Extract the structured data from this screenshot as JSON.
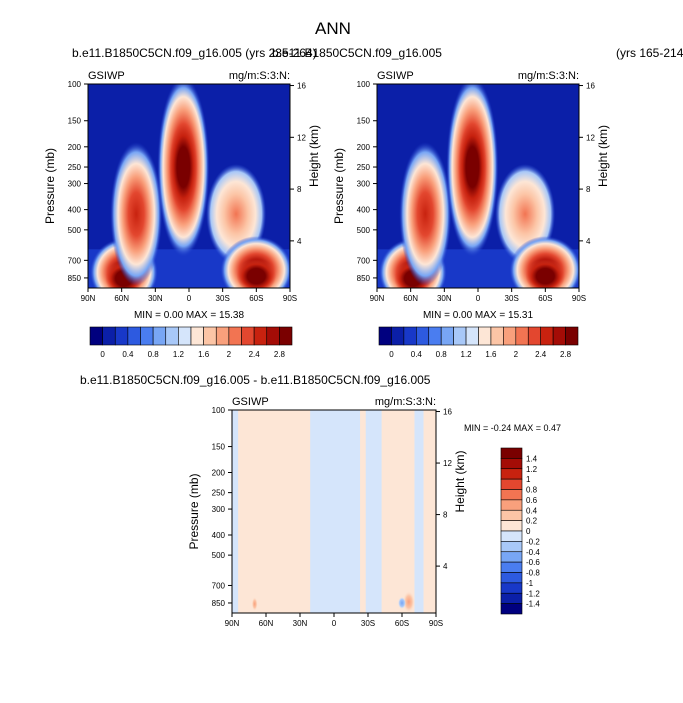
{
  "figure": {
    "title": "ANN",
    "left_header": "b.e11.B1850C5CN.f09_g16.005 (yrs 235-264)",
    "right_header": "b.e11.B1850C5CN.f09_g16.005",
    "right_header_years": "(yrs 165-214)",
    "diff_header": "b.e11.B1850C5CN.f09_g16.005 - b.e11.B1850C5CN.f09_g16.005"
  },
  "chart_data": [
    {
      "id": "panel-left",
      "type": "heatmap",
      "variable": "GSIWP",
      "units": "mg/m:S:3:N:",
      "ylabel": "Pressure (mb)",
      "y2label": "Height (km)",
      "x_ticks": [
        "90N",
        "60N",
        "30N",
        "0",
        "30S",
        "60S",
        "90S"
      ],
      "y_ticks": [
        "100",
        "150",
        "200",
        "250",
        "300",
        "400",
        "500",
        "700",
        "850"
      ],
      "y2_ticks": [
        "16",
        "12",
        "8",
        "4"
      ],
      "min_max_text": "MIN =  0.00  MAX =  15.38",
      "min": 0.0,
      "max": 15.38,
      "colorbar_labels": [
        "0",
        "0.4",
        "0.8",
        "1.2",
        "1.6",
        "2",
        "2.4",
        "2.8"
      ],
      "features": [
        {
          "lat": 58,
          "p": 800,
          "value": 3.0
        },
        {
          "lat": 47,
          "p": 420,
          "value": 2.2
        },
        {
          "lat": 5,
          "p": 250,
          "value": 3.0
        },
        {
          "lat": -42,
          "p": 420,
          "value": 1.6
        },
        {
          "lat": -60,
          "p": 780,
          "value": 3.0
        }
      ]
    },
    {
      "id": "panel-right",
      "type": "heatmap",
      "variable": "GSIWP",
      "units": "mg/m:S:3:N:",
      "ylabel": "Pressure (mb)",
      "y2label": "Height (km)",
      "x_ticks": [
        "90N",
        "60N",
        "30N",
        "0",
        "30S",
        "60S",
        "90S"
      ],
      "y_ticks": [
        "100",
        "150",
        "200",
        "250",
        "300",
        "400",
        "500",
        "700",
        "850"
      ],
      "y2_ticks": [
        "16",
        "12",
        "8",
        "4"
      ],
      "min_max_text": "MIN =  0.00  MAX =  15.31",
      "min": 0.0,
      "max": 15.31,
      "colorbar_labels": [
        "0",
        "0.4",
        "0.8",
        "1.2",
        "1.6",
        "2",
        "2.4",
        "2.8"
      ],
      "features": [
        {
          "lat": 58,
          "p": 800,
          "value": 3.0
        },
        {
          "lat": 47,
          "p": 420,
          "value": 2.2
        },
        {
          "lat": 5,
          "p": 250,
          "value": 3.0
        },
        {
          "lat": -42,
          "p": 420,
          "value": 1.6
        },
        {
          "lat": -60,
          "p": 780,
          "value": 3.0
        }
      ]
    },
    {
      "id": "panel-diff",
      "type": "heatmap",
      "variable": "GSIWP",
      "units": "mg/m:S:3:N:",
      "ylabel": "Pressure (mb)",
      "y2label": "Height (km)",
      "x_ticks": [
        "90N",
        "60N",
        "30N",
        "0",
        "30S",
        "60S",
        "90S"
      ],
      "y_ticks": [
        "100",
        "150",
        "200",
        "250",
        "300",
        "400",
        "500",
        "700",
        "850"
      ],
      "y2_ticks": [
        "16",
        "12",
        "8",
        "4"
      ],
      "min_max_text": "MIN = -0.24  MAX =  0.47",
      "min": -0.24,
      "max": 0.47,
      "colorbar_labels": [
        "1.4",
        "1.2",
        "1",
        "0.8",
        "0.6",
        "0.4",
        "0.2",
        "0",
        "-0.2",
        "-0.4",
        "-0.6",
        "-0.8",
        "-1",
        "-1.2",
        "-1.4"
      ],
      "features": [
        {
          "lat": -66,
          "p": 840,
          "value": 0.45
        },
        {
          "lat": -60,
          "p": 850,
          "value": -0.24
        }
      ]
    }
  ],
  "colors": {
    "left_cbar": [
      "#00007f",
      "#0b1fa8",
      "#1838c8",
      "#2d5ae0",
      "#4a7df0",
      "#78a6f5",
      "#a8c8f8",
      "#d5e5fb",
      "#fde6d6",
      "#fcc5a6",
      "#f9a07c",
      "#f27452",
      "#e3472f",
      "#c8220f",
      "#a40c06",
      "#7a0000"
    ],
    "diff_cbar": [
      "#7a0000",
      "#a40c06",
      "#c8220f",
      "#e3472f",
      "#f27452",
      "#f9a07c",
      "#fcc5a6",
      "#fde6d6",
      "#d5e5fb",
      "#a8c8f8",
      "#78a6f5",
      "#4a7df0",
      "#2d5ae0",
      "#1838c8",
      "#0b1fa8",
      "#00007f"
    ]
  }
}
